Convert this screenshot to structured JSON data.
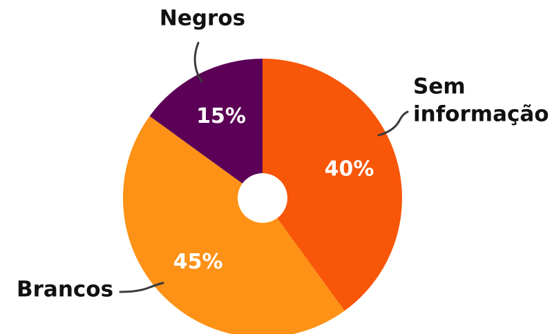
{
  "chart_data": {
    "type": "pie",
    "title": "",
    "slices": [
      {
        "label": "Sem informação",
        "label_lines": [
          "Sem",
          "informação"
        ],
        "value": 40,
        "value_label": "40%",
        "color": "#f85608"
      },
      {
        "label": "Brancos",
        "label_lines": [
          "Brancos"
        ],
        "value": 45,
        "value_label": "45%",
        "color": "#fd9216"
      },
      {
        "label": "Negros",
        "label_lines": [
          "Negros"
        ],
        "value": 15,
        "value_label": "15%",
        "color": "#5b0056"
      }
    ],
    "start_angle_deg": 0,
    "direction": "clockwise",
    "center_hole": true,
    "legend": "none"
  }
}
